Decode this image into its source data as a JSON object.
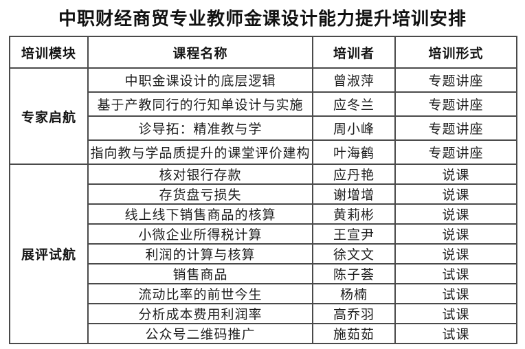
{
  "page": {
    "title": "中职财经商贸专业教师金课设计能力提升培训安排"
  },
  "colors": {
    "border": "#4a4a4a",
    "text": "#1c1c1c",
    "background": "#ffffff"
  },
  "table": {
    "headers": [
      "培训模块",
      "课程名称",
      "培训者",
      "培训形式"
    ],
    "sections": [
      {
        "module": "专家启航",
        "rows": [
          {
            "course": "中职金课设计的底层逻辑",
            "trainer": "曾淑萍",
            "format": "专题讲座"
          },
          {
            "course": "基于产教同行的行知单设计与实施",
            "trainer": "应冬兰",
            "format": "专题讲座"
          },
          {
            "course": "诊导拓：精准教与学",
            "trainer": "周小峰",
            "format": "专题讲座"
          },
          {
            "course": "指向教与学品质提升的课堂评价建构",
            "trainer": "叶海鹤",
            "format": "专题讲座"
          }
        ]
      },
      {
        "module": "展评试航",
        "rows": [
          {
            "course": "核对银行存款",
            "trainer": "应丹艳",
            "format": "说课"
          },
          {
            "course": "存货盘亏损失",
            "trainer": "谢增增",
            "format": "说课"
          },
          {
            "course": "线上线下销售商品的核算",
            "trainer": "黄莉彬",
            "format": "说课"
          },
          {
            "course": "小微企业所得税计算",
            "trainer": "王宣尹",
            "format": "说课"
          },
          {
            "course": "利润的计算与核算",
            "trainer": "徐文文",
            "format": "说课"
          },
          {
            "course": "销售商品",
            "trainer": "陈子荟",
            "format": "试课"
          },
          {
            "course": "流动比率的前世今生",
            "trainer": "杨楠",
            "format": "试课"
          },
          {
            "course": "分析成本费用利润率",
            "trainer": "高乔羽",
            "format": "试课"
          },
          {
            "course": "公众号二维码推广",
            "trainer": "施茹茹",
            "format": "试课"
          }
        ]
      }
    ]
  }
}
